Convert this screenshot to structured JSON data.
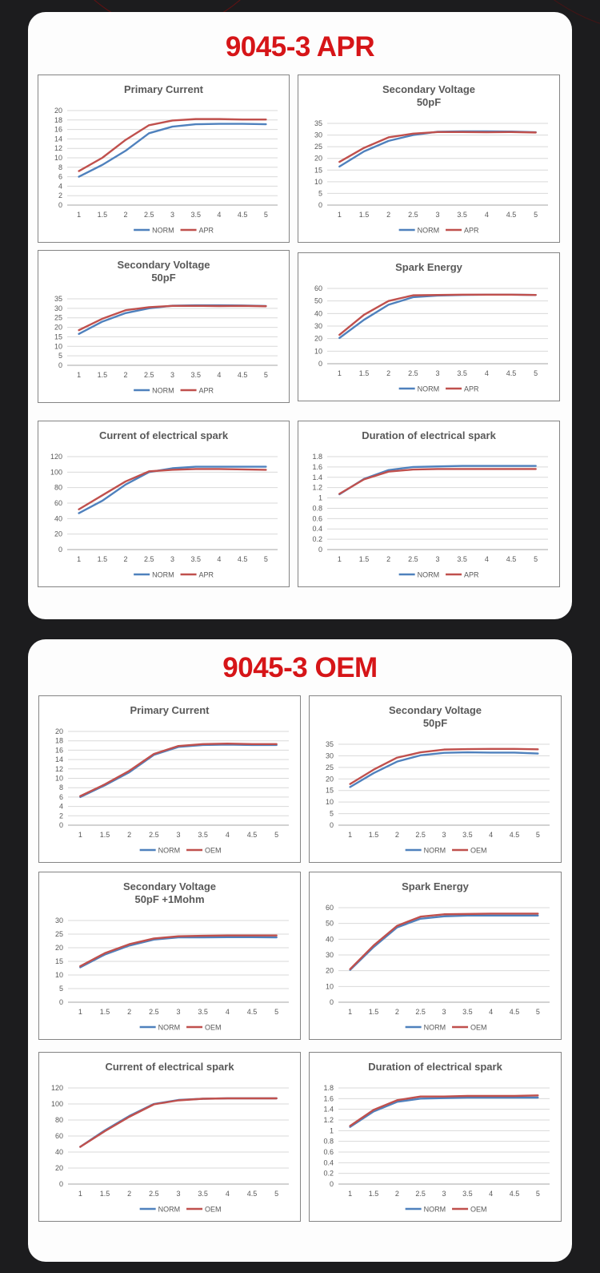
{
  "page": {
    "background_color": "#1c1c1e",
    "card_color": "#fdfdfd",
    "accent_red": "#d61518",
    "series_blue": "#4f81bd",
    "series_red": "#c0504d",
    "axis_text_color": "#595959",
    "gridline_color": "#d9d9d9"
  },
  "cards": [
    {
      "title": "9045-3 APR",
      "chart_indexes": [
        0,
        1,
        2,
        3,
        4,
        5
      ]
    },
    {
      "title": "9045-3 OEM",
      "chart_indexes": [
        6,
        7,
        8,
        9,
        10,
        11
      ]
    }
  ],
  "x_categories": [
    "1",
    "1.5",
    "2",
    "2.5",
    "3",
    "3.5",
    "4",
    "4.5",
    "5"
  ],
  "chart_data": [
    {
      "panel": "9045-3 APR",
      "type": "line",
      "title_lines": [
        "Primary Current"
      ],
      "ylim": [
        0,
        20
      ],
      "ytick_step": 2,
      "grid": true,
      "legend_position": "bottom",
      "x": [
        1,
        1.5,
        2,
        2.5,
        3,
        3.5,
        4,
        4.5,
        5
      ],
      "series": [
        {
          "name": "NORM",
          "color": "#4f81bd",
          "values": [
            6,
            8.5,
            11.5,
            15.2,
            16.6,
            17.1,
            17.2,
            17.2,
            17.1
          ]
        },
        {
          "name": "APR",
          "color": "#c0504d",
          "values": [
            7.2,
            10,
            13.8,
            16.9,
            17.9,
            18.2,
            18.2,
            18.1,
            18.1
          ]
        }
      ]
    },
    {
      "panel": "9045-3 APR",
      "type": "line",
      "title_lines": [
        "Secondary Voltage",
        "50pF"
      ],
      "ylim": [
        0,
        35
      ],
      "ytick_step": 5,
      "grid": true,
      "legend_position": "bottom",
      "x": [
        1,
        1.5,
        2,
        2.5,
        3,
        3.5,
        4,
        4.5,
        5
      ],
      "series": [
        {
          "name": "NORM",
          "color": "#4f81bd",
          "values": [
            16.5,
            23,
            27.5,
            30,
            31.4,
            31.6,
            31.6,
            31.5,
            31.2
          ]
        },
        {
          "name": "APR",
          "color": "#c0504d",
          "values": [
            18.5,
            24.5,
            29,
            30.6,
            31.3,
            31.3,
            31.2,
            31.3,
            31.1
          ]
        }
      ]
    },
    {
      "panel": "9045-3 APR",
      "type": "line",
      "title_lines": [
        "Secondary Voltage",
        "50pF"
      ],
      "ylim": [
        0,
        35
      ],
      "ytick_step": 5,
      "grid": true,
      "legend_position": "bottom",
      "x": [
        1,
        1.5,
        2,
        2.5,
        3,
        3.5,
        4,
        4.5,
        5
      ],
      "series": [
        {
          "name": "NORM",
          "color": "#4f81bd",
          "values": [
            16.5,
            23,
            27.5,
            30,
            31.4,
            31.6,
            31.6,
            31.5,
            31.2
          ]
        },
        {
          "name": "APR",
          "color": "#c0504d",
          "values": [
            18.5,
            24.5,
            29,
            30.6,
            31.3,
            31.3,
            31.2,
            31.3,
            31.1
          ]
        }
      ]
    },
    {
      "panel": "9045-3 APR",
      "type": "line",
      "title_lines": [
        "Spark Energy"
      ],
      "ylim": [
        0,
        60
      ],
      "ytick_step": 10,
      "grid": true,
      "legend_position": "bottom",
      "x": [
        1,
        1.5,
        2,
        2.5,
        3,
        3.5,
        4,
        4.5,
        5
      ],
      "series": [
        {
          "name": "NORM",
          "color": "#4f81bd",
          "values": [
            20.5,
            35,
            47,
            53,
            54.3,
            54.8,
            55,
            55,
            54.8
          ]
        },
        {
          "name": "APR",
          "color": "#c0504d",
          "values": [
            23,
            39,
            50,
            54.5,
            54.8,
            55,
            55,
            55,
            54.8
          ]
        }
      ]
    },
    {
      "panel": "9045-3 APR",
      "type": "line",
      "title_lines": [
        "Current of electrical spark"
      ],
      "ylim": [
        0,
        120
      ],
      "ytick_step": 20,
      "grid": true,
      "legend_position": "bottom",
      "x": [
        1,
        1.5,
        2,
        2.5,
        3,
        3.5,
        4,
        4.5,
        5
      ],
      "series": [
        {
          "name": "NORM",
          "color": "#4f81bd",
          "values": [
            47,
            63,
            84,
            100,
            105,
            107,
            107,
            107,
            107
          ]
        },
        {
          "name": "APR",
          "color": "#c0504d",
          "values": [
            52,
            70,
            88,
            101,
            103,
            104,
            104,
            103.5,
            103
          ]
        }
      ]
    },
    {
      "panel": "9045-3 APR",
      "type": "line",
      "title_lines": [
        "Duration of electrical spark"
      ],
      "ylim": [
        0,
        1.8
      ],
      "ytick_step": 0.2,
      "grid": true,
      "legend_position": "bottom",
      "x": [
        1,
        1.5,
        2,
        2.5,
        3,
        3.5,
        4,
        4.5,
        5
      ],
      "series": [
        {
          "name": "NORM",
          "color": "#4f81bd",
          "values": [
            1.07,
            1.37,
            1.54,
            1.6,
            1.61,
            1.62,
            1.62,
            1.62,
            1.62
          ]
        },
        {
          "name": "APR",
          "color": "#c0504d",
          "values": [
            1.08,
            1.36,
            1.51,
            1.55,
            1.56,
            1.56,
            1.56,
            1.56,
            1.56
          ]
        }
      ]
    },
    {
      "panel": "9045-3 OEM",
      "type": "line",
      "title_lines": [
        "Primary Current"
      ],
      "ylim": [
        0,
        20
      ],
      "ytick_step": 2,
      "grid": true,
      "legend_position": "bottom",
      "x": [
        1,
        1.5,
        2,
        2.5,
        3,
        3.5,
        4,
        4.5,
        5
      ],
      "series": [
        {
          "name": "NORM",
          "color": "#4f81bd",
          "values": [
            6,
            8.5,
            11.3,
            15,
            16.7,
            17.1,
            17.2,
            17.1,
            17.1
          ]
        },
        {
          "name": "OEM",
          "color": "#c0504d",
          "values": [
            6.2,
            8.7,
            11.6,
            15.2,
            16.9,
            17.3,
            17.4,
            17.3,
            17.3
          ]
        }
      ]
    },
    {
      "panel": "9045-3 OEM",
      "type": "line",
      "title_lines": [
        "Secondary Voltage",
        "50pF"
      ],
      "ylim": [
        0,
        35
      ],
      "ytick_step": 5,
      "grid": true,
      "legend_position": "bottom",
      "x": [
        1,
        1.5,
        2,
        2.5,
        3,
        3.5,
        4,
        4.5,
        5
      ],
      "series": [
        {
          "name": "NORM",
          "color": "#4f81bd",
          "values": [
            16.5,
            22.5,
            27.5,
            30.2,
            31.3,
            31.5,
            31.4,
            31.4,
            31
          ]
        },
        {
          "name": "OEM",
          "color": "#c0504d",
          "values": [
            17.8,
            24,
            29.2,
            31.5,
            32.7,
            32.9,
            33,
            33,
            32.8
          ]
        }
      ]
    },
    {
      "panel": "9045-3 OEM",
      "type": "line",
      "title_lines": [
        "Secondary Voltage",
        "50pF +1Mohm"
      ],
      "ylim": [
        0,
        30
      ],
      "ytick_step": 5,
      "grid": true,
      "legend_position": "bottom",
      "x": [
        1,
        1.5,
        2,
        2.5,
        3,
        3.5,
        4,
        4.5,
        5
      ],
      "series": [
        {
          "name": "NORM",
          "color": "#4f81bd",
          "values": [
            12.8,
            17.5,
            20.8,
            23,
            23.8,
            23.8,
            23.9,
            23.9,
            23.8
          ]
        },
        {
          "name": "OEM",
          "color": "#c0504d",
          "values": [
            13.2,
            18,
            21.3,
            23.4,
            24.2,
            24.4,
            24.5,
            24.5,
            24.5
          ]
        }
      ]
    },
    {
      "panel": "9045-3 OEM",
      "type": "line",
      "title_lines": [
        "Spark Energy"
      ],
      "ylim": [
        0,
        60
      ],
      "ytick_step": 10,
      "grid": true,
      "legend_position": "bottom",
      "x": [
        1,
        1.5,
        2,
        2.5,
        3,
        3.5,
        4,
        4.5,
        5
      ],
      "series": [
        {
          "name": "NORM",
          "color": "#4f81bd",
          "values": [
            20.5,
            35,
            47.5,
            53,
            54.5,
            55,
            55,
            55,
            55
          ]
        },
        {
          "name": "OEM",
          "color": "#c0504d",
          "values": [
            21,
            36,
            48.5,
            54.3,
            55.8,
            56,
            56.2,
            56.2,
            56.2
          ]
        }
      ]
    },
    {
      "panel": "9045-3 OEM",
      "type": "line",
      "title_lines": [
        "Current of electrical spark"
      ],
      "ylim": [
        0,
        120
      ],
      "ytick_step": 20,
      "grid": true,
      "legend_position": "bottom",
      "x": [
        1,
        1.5,
        2,
        2.5,
        3,
        3.5,
        4,
        4.5,
        5
      ],
      "series": [
        {
          "name": "NORM",
          "color": "#4f81bd",
          "values": [
            46.5,
            67,
            85,
            100,
            105,
            106.5,
            107,
            107,
            107
          ]
        },
        {
          "name": "OEM",
          "color": "#c0504d",
          "values": [
            46.5,
            66,
            84,
            99.5,
            104.5,
            106.5,
            107,
            107,
            107
          ]
        }
      ]
    },
    {
      "panel": "9045-3 OEM",
      "type": "line",
      "title_lines": [
        "Duration of electrical spark"
      ],
      "ylim": [
        0,
        1.8
      ],
      "ytick_step": 0.2,
      "grid": true,
      "legend_position": "bottom",
      "x": [
        1,
        1.5,
        2,
        2.5,
        3,
        3.5,
        4,
        4.5,
        5
      ],
      "series": [
        {
          "name": "NORM",
          "color": "#4f81bd",
          "values": [
            1.07,
            1.36,
            1.54,
            1.6,
            1.61,
            1.62,
            1.62,
            1.62,
            1.62
          ]
        },
        {
          "name": "OEM",
          "color": "#c0504d",
          "values": [
            1.09,
            1.39,
            1.57,
            1.64,
            1.64,
            1.65,
            1.65,
            1.65,
            1.66
          ]
        }
      ]
    }
  ]
}
